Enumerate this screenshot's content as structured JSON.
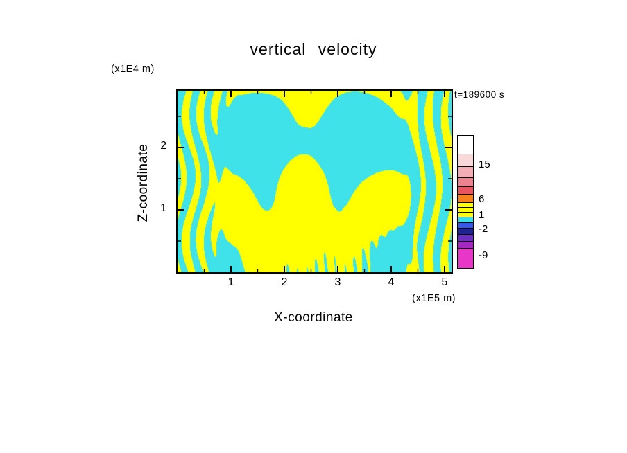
{
  "page": {
    "background": "#FFFFFF"
  },
  "chart": {
    "title": "vertical velocity",
    "time_label": "t=189600 s",
    "xlabel": "X-coordinate",
    "ylabel": "Z-coordinate",
    "x_units_label": "(x1E5 m)",
    "z_units_label": "(x1E4 m)"
  },
  "chart_data": {
    "type": "heatmap",
    "title": "vertical velocity",
    "xlabel": "X-coordinate",
    "ylabel": "Z-coordinate",
    "x_units": "(x1E5 m)",
    "z_units": "(x1E4 m)",
    "time_annotation": "t=189600 s",
    "x_range": [
      0,
      5.13
    ],
    "z_range": [
      0,
      2.91
    ],
    "x_major_ticks": [
      1,
      2,
      3,
      4,
      5
    ],
    "x_minor_ticks": [
      0.5,
      1.5,
      2.5,
      3.5,
      4.5
    ],
    "z_major_ticks": [
      1,
      2
    ],
    "z_minor_ticks": [
      0.5,
      1.5,
      2.5
    ],
    "grid": false,
    "legend_position": "right-colorbar",
    "colorbar": {
      "tick_labels": [
        {
          "label": "15",
          "y": 43
        },
        {
          "label": "6",
          "y": 93
        },
        {
          "label": "1",
          "y": 116
        },
        {
          "label": "-2",
          "y": 136
        },
        {
          "label": "-9",
          "y": 174
        }
      ],
      "segments": [
        {
          "color": "#FFFFFF",
          "h": 26
        },
        {
          "color": "#F8D8D8",
          "h": 18
        },
        {
          "color": "#F2AEB4",
          "h": 16
        },
        {
          "color": "#EC8490",
          "h": 13
        },
        {
          "color": "#E85560",
          "h": 11
        },
        {
          "color": "#F5821E",
          "h": 12
        },
        {
          "color": "#FFFF00",
          "h": 7
        },
        {
          "color": "#FFFF00",
          "h": 7
        },
        {
          "color": "#FFFF00",
          "h": 7
        },
        {
          "color": "#38DFE8",
          "h": 8
        },
        {
          "color": "#3858E8",
          "h": 8
        },
        {
          "color": "#1F2490",
          "h": 9
        },
        {
          "color": "#6A2FBE",
          "h": 10
        },
        {
          "color": "#A428C4",
          "h": 10
        },
        {
          "color": "#E736C8",
          "h": 28
        }
      ]
    },
    "field": {
      "positive_color": "#FFFF00",
      "negative_color": "#3FE2E8",
      "description": "Two-level filled contour of vertical velocity: yellow = updraft band (approx 1 to 6 units), cyan = downdraft band (approx -2 to 1 units). Dense vertical wave stripes hug the left and right lateral boundaries, fan-shaped gravity-wave rays radiate from a central low-level source, a broad yellow dome fills the lower centre with a cyan cap above it, a small yellow arch with a cyan eye touches the top centre, and fine streaky columns appear near the bottom centre.",
      "pattern": {
        "threshold": 0,
        "base": -0.15,
        "source": [
          2.35,
          -0.9
        ],
        "fan": {
          "k": 10,
          "amp": 1.1,
          "r0": 2.3,
          "rw": 1.2
        },
        "dome": {
          "amp": 2.6,
          "x": 2.35,
          "sx": 1.15,
          "z": 0.75,
          "sz": 0.62
        },
        "arch": {
          "amp": 2.0,
          "x": 2.45,
          "sx": 0.38,
          "z": 2.55,
          "sz": 0.5
        },
        "hole": {
          "amp": -3.0,
          "x": 2.37,
          "sx": 0.14,
          "z": 2.12,
          "sz": 0.12
        },
        "cap": {
          "amp": -1.6,
          "x": 2.5,
          "sx": 1.5,
          "z": 2.1,
          "sz": 0.6
        },
        "stripes_left": {
          "amp": 1.8,
          "period": 0.27,
          "edge": 0.72,
          "soft": 0.1,
          "wiggle": 0.12,
          "wigglek": 3.1
        },
        "stripes_right": {
          "amp": 1.8,
          "period": 0.3,
          "edge": 4.55,
          "soft": 0.1,
          "wiggle": 0.1,
          "wigglek": 2.7
        },
        "streaks": {
          "amp": 1.5,
          "period": 0.18,
          "zslope": 4,
          "z0": 0.12,
          "zw": 0.42,
          "x0": 2.9,
          "xw": 1.1
        },
        "arcs": {
          "amp": 0.5,
          "k": 4.5,
          "phase": 1.0
        }
      }
    }
  }
}
